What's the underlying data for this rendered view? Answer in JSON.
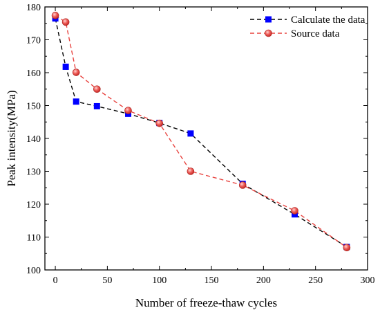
{
  "chart_data": {
    "type": "line",
    "title": "",
    "xlabel": "Number of freeze-thaw cycles",
    "ylabel": "Peak intensity(MPa)",
    "xlim": [
      -10,
      300
    ],
    "ylim": [
      100,
      180
    ],
    "xticks": [
      "0",
      "50",
      "100",
      "150",
      "200",
      "250",
      "300"
    ],
    "yticks": [
      "100",
      "110",
      "120",
      "130",
      "140",
      "150",
      "160",
      "170",
      "180"
    ],
    "grid": false,
    "legend_position": "top-right",
    "series": [
      {
        "name": "Calculate the data",
        "marker": "square",
        "color": "#0000ff",
        "line_color": "#000000",
        "line_style": "dashed",
        "x": [
          0,
          10,
          20,
          40,
          70,
          100,
          130,
          180,
          230,
          280
        ],
        "y": [
          176.5,
          161.8,
          151.2,
          149.8,
          147.5,
          144.7,
          141.5,
          126.2,
          116.9,
          107.0
        ]
      },
      {
        "name": "Source data",
        "marker": "circle",
        "color": "#e8433f",
        "line_color": "#e8433f",
        "line_style": "dashed",
        "x": [
          0,
          10,
          20,
          40,
          70,
          100,
          130,
          180,
          230,
          280
        ],
        "y": [
          177.4,
          175.4,
          160.1,
          155.0,
          148.5,
          144.6,
          130.0,
          125.8,
          118.0,
          106.8
        ]
      }
    ]
  }
}
